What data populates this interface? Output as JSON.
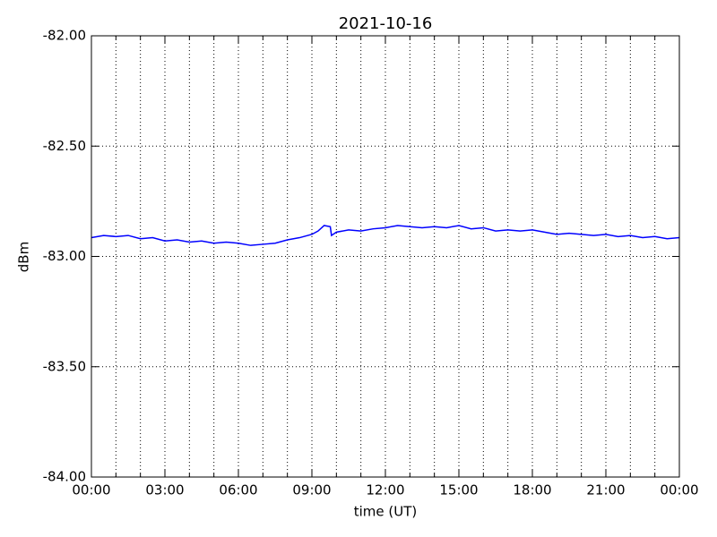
{
  "chart_data": {
    "type": "line",
    "title": "2021-10-16",
    "x_label": "time (UT)",
    "y_label": "dBm",
    "color": "#0000ff",
    "grid": true,
    "x": [
      0,
      0.5,
      1,
      1.5,
      2,
      2.5,
      3,
      3.5,
      4,
      4.5,
      5,
      5.5,
      6,
      6.5,
      7,
      7.5,
      8,
      8.5,
      9,
      9.25,
      9.5,
      9.75,
      9.8,
      10,
      10.5,
      11,
      11.5,
      12,
      12.5,
      13,
      13.5,
      14,
      14.5,
      15,
      15.5,
      16,
      16.5,
      17,
      17.5,
      18,
      18.5,
      19,
      19.5,
      20,
      20.5,
      21,
      21.5,
      22,
      22.5,
      23,
      23.5,
      24
    ],
    "values": [
      -82.915,
      -82.905,
      -82.91,
      -82.905,
      -82.92,
      -82.915,
      -82.93,
      -82.925,
      -82.935,
      -82.93,
      -82.94,
      -82.935,
      -82.94,
      -82.95,
      -82.945,
      -82.94,
      -82.925,
      -82.915,
      -82.9,
      -82.885,
      -82.86,
      -82.865,
      -82.905,
      -82.89,
      -82.88,
      -82.885,
      -82.875,
      -82.87,
      -82.86,
      -82.865,
      -82.87,
      -82.865,
      -82.87,
      -82.86,
      -82.875,
      -82.87,
      -82.885,
      -82.88,
      -82.885,
      -82.88,
      -82.89,
      -82.9,
      -82.895,
      -82.9,
      -82.905,
      -82.9,
      -82.91,
      -82.905,
      -82.915,
      -82.91,
      -82.92,
      -82.915
    ],
    "xlim": [
      0,
      24
    ],
    "xticks": [
      {
        "value": 0,
        "label": "00:00"
      },
      {
        "value": 3,
        "label": "03:00"
      },
      {
        "value": 6,
        "label": "06:00"
      },
      {
        "value": 9,
        "label": "09:00"
      },
      {
        "value": 12,
        "label": "12:00"
      },
      {
        "value": 15,
        "label": "15:00"
      },
      {
        "value": 18,
        "label": "18:00"
      },
      {
        "value": 21,
        "label": "21:00"
      },
      {
        "value": 24,
        "label": "00:00"
      }
    ],
    "xminorticks": [
      1,
      2,
      4,
      5,
      7,
      8,
      10,
      11,
      13,
      14,
      16,
      17,
      19,
      20,
      22,
      23
    ],
    "ylim": [
      -84,
      -82
    ],
    "yticks": [
      {
        "value": -84,
        "label": "-84.00"
      },
      {
        "value": -83.5,
        "label": "-83.50"
      },
      {
        "value": -83,
        "label": "-83.00"
      },
      {
        "value": -82.5,
        "label": "-82.50"
      },
      {
        "value": -82,
        "label": "-82.00"
      }
    ]
  }
}
